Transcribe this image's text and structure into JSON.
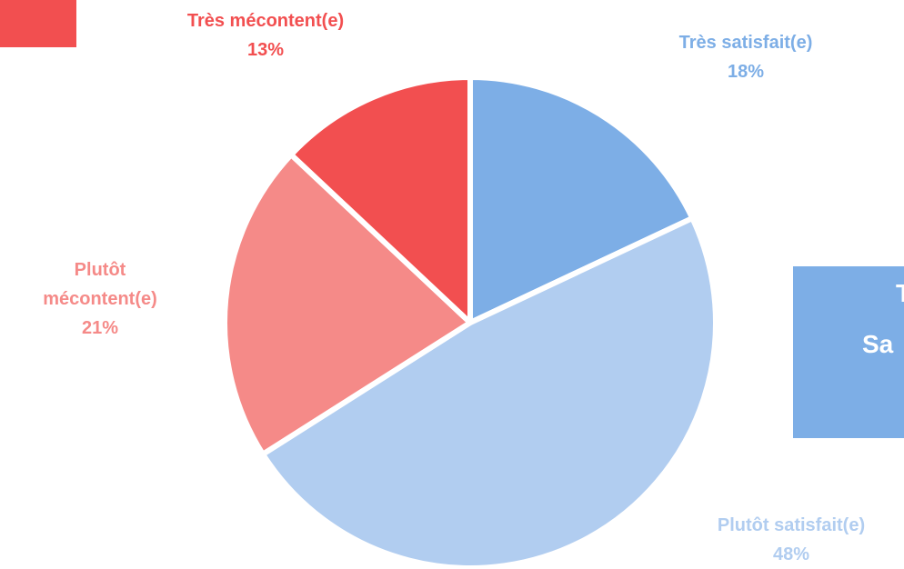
{
  "chart_data": {
    "type": "pie",
    "categories": [
      "Très satisfait(e)",
      "Plutôt satisfait(e)",
      "Plutôt mécontent(e)",
      "Très mécontent(e)"
    ],
    "values": [
      18,
      48,
      21,
      13
    ],
    "value_labels": [
      "18%",
      "48%",
      "21%",
      "13%"
    ],
    "colors": [
      "#7daee6",
      "#b1cdf0",
      "#f58a88",
      "#f24f50"
    ]
  },
  "side_box": {
    "lines": [
      "T",
      "Sa"
    ]
  }
}
